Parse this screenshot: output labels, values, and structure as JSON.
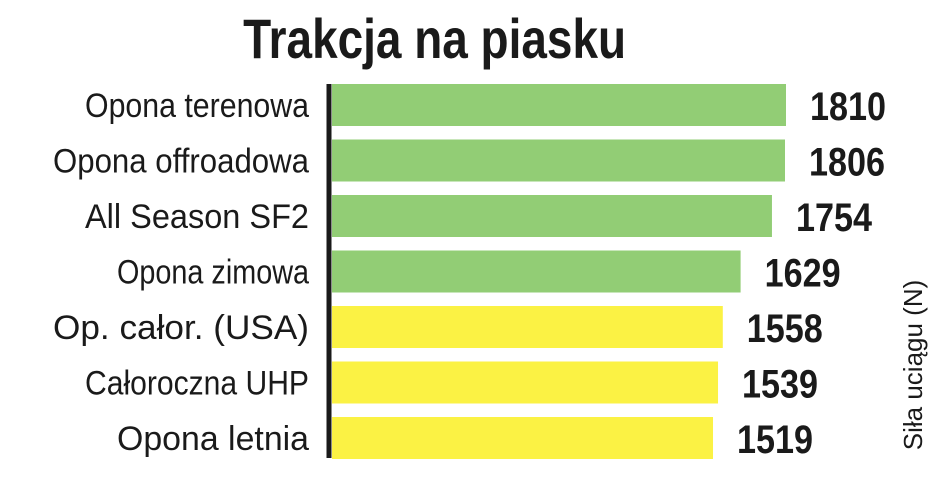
{
  "chart_data": {
    "type": "bar",
    "orientation": "horizontal",
    "title": "Trakcja na piasku",
    "ylabel": "Siła uciągu (N)",
    "categories": [
      "Opona terenowa",
      "Opona offroadowa",
      "All Season SF2",
      "Opona zimowa",
      "Op. całor. (USA)",
      "Całoroczna UHP",
      "Opona letnia"
    ],
    "values": [
      1810,
      1806,
      1754,
      1629,
      1558,
      1539,
      1519
    ],
    "bar_colors": [
      "#92cd75",
      "#92cd75",
      "#92cd75",
      "#92cd75",
      "#fbf244",
      "#fbf244",
      "#fbf244"
    ],
    "xlim": [
      0,
      1810
    ],
    "grid": false,
    "legend": "none"
  }
}
